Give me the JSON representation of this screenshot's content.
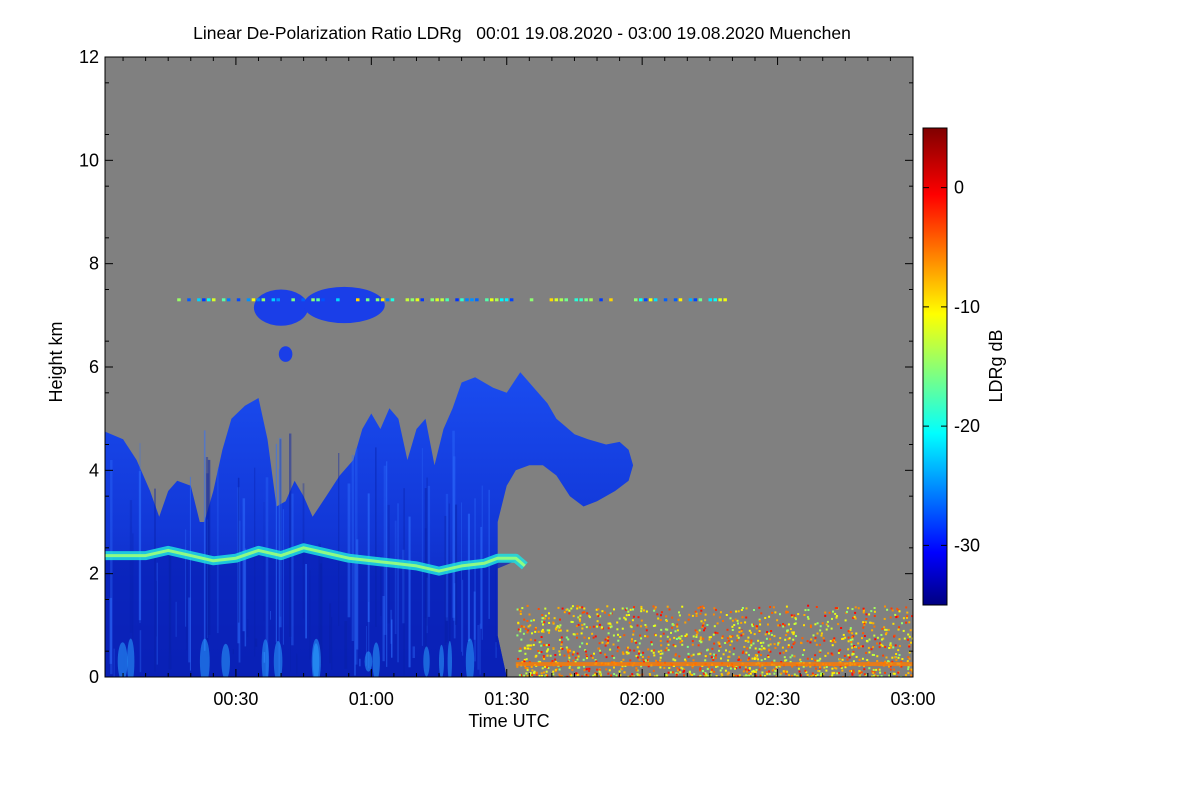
{
  "chart_data": {
    "type": "heatmap",
    "title": "Linear De-Polarization Ratio LDRg   00:01 19.08.2020 - 03:00 19.08.2020 Muenchen",
    "xlabel": "Time UTC",
    "ylabel": "Height km",
    "x_range_minutes": [
      1,
      180
    ],
    "y_range_km": [
      0,
      12
    ],
    "x_ticks": [
      {
        "label": "00:30",
        "minutes": 30
      },
      {
        "label": "01:00",
        "minutes": 60
      },
      {
        "label": "01:30",
        "minutes": 90
      },
      {
        "label": "02:00",
        "minutes": 120
      },
      {
        "label": "02:30",
        "minutes": 150
      },
      {
        "label": "03:00",
        "minutes": 180
      }
    ],
    "y_ticks": [
      {
        "label": "0",
        "km": 0
      },
      {
        "label": "2",
        "km": 2
      },
      {
        "label": "4",
        "km": 4
      },
      {
        "label": "6",
        "km": 6
      },
      {
        "label": "8",
        "km": 8
      },
      {
        "label": "10",
        "km": 10
      },
      {
        "label": "12",
        "km": 12
      }
    ],
    "colorbar": {
      "label": "LDRg dB",
      "range": [
        -35,
        5
      ],
      "ticks": [
        {
          "label": "0",
          "value": 0
        },
        {
          "label": "-10",
          "value": -10
        },
        {
          "label": "-20",
          "value": -20
        },
        {
          "label": "-30",
          "value": -30
        }
      ],
      "colormap": "jet"
    },
    "background_color": "#808080",
    "features": {
      "main_cloud_outline": [
        [
          1,
          0
        ],
        [
          1,
          4.75
        ],
        [
          5,
          4.6
        ],
        [
          8,
          4.2
        ],
        [
          11,
          3.6
        ],
        [
          13,
          3.1
        ],
        [
          15,
          3.6
        ],
        [
          17,
          3.8
        ],
        [
          20,
          3.7
        ],
        [
          22,
          3.0
        ],
        [
          23,
          3.0
        ],
        [
          25,
          3.6
        ],
        [
          27,
          4.4
        ],
        [
          29,
          5.0
        ],
        [
          32,
          5.25
        ],
        [
          35,
          5.4
        ],
        [
          37,
          4.6
        ],
        [
          39,
          3.3
        ],
        [
          41,
          3.4
        ],
        [
          43,
          3.8
        ],
        [
          45,
          3.5
        ],
        [
          47,
          3.1
        ],
        [
          50,
          3.5
        ],
        [
          53,
          3.9
        ],
        [
          56,
          4.2
        ],
        [
          58,
          4.8
        ],
        [
          60,
          5.1
        ],
        [
          62,
          4.8
        ],
        [
          64,
          5.2
        ],
        [
          66,
          5.0
        ],
        [
          68,
          4.2
        ],
        [
          70,
          4.8
        ],
        [
          72,
          5.0
        ],
        [
          74,
          4.1
        ],
        [
          76,
          4.8
        ],
        [
          78,
          5.2
        ],
        [
          80,
          5.7
        ],
        [
          83,
          5.8
        ],
        [
          87,
          5.6
        ],
        [
          90,
          5.5
        ],
        [
          93,
          5.9
        ],
        [
          96,
          5.6
        ],
        [
          99,
          5.3
        ],
        [
          101,
          5.0
        ],
        [
          103,
          4.85
        ],
        [
          105,
          4.7
        ],
        [
          108,
          4.6
        ],
        [
          112,
          4.5
        ],
        [
          115,
          4.55
        ],
        [
          117,
          4.4
        ],
        [
          118,
          4.1
        ],
        [
          117,
          3.8
        ],
        [
          114,
          3.6
        ],
        [
          110,
          3.4
        ],
        [
          107,
          3.3
        ],
        [
          104,
          3.5
        ],
        [
          101,
          3.9
        ],
        [
          98,
          4.1
        ],
        [
          95,
          4.1
        ],
        [
          92,
          4.0
        ],
        [
          90,
          3.7
        ],
        [
          88,
          3.0
        ],
        [
          88,
          2.3
        ],
        [
          88,
          0.8
        ],
        [
          90,
          0
        ]
      ],
      "melting_layer": [
        [
          1,
          2.35
        ],
        [
          10,
          2.35
        ],
        [
          15,
          2.45
        ],
        [
          20,
          2.35
        ],
        [
          25,
          2.25
        ],
        [
          30,
          2.3
        ],
        [
          35,
          2.45
        ],
        [
          40,
          2.35
        ],
        [
          45,
          2.5
        ],
        [
          50,
          2.4
        ],
        [
          55,
          2.3
        ],
        [
          60,
          2.25
        ],
        [
          65,
          2.2
        ],
        [
          70,
          2.15
        ],
        [
          75,
          2.05
        ],
        [
          80,
          2.15
        ],
        [
          85,
          2.2
        ],
        [
          88,
          2.3
        ],
        [
          92,
          2.3
        ],
        [
          94,
          2.15
        ]
      ],
      "cirrus_patches": [
        {
          "center_min": 40,
          "center_km": 7.15,
          "rx_min": 6,
          "ry_km": 0.35
        },
        {
          "center_min": 54,
          "center_km": 7.2,
          "rx_min": 9,
          "ry_km": 0.35
        },
        {
          "center_min": 41,
          "center_km": 6.25,
          "rx_min": 1.5,
          "ry_km": 0.15
        }
      ],
      "cirrus_streak_km": 7.3,
      "cirrus_streak_span_min": [
        17,
        140
      ],
      "boundary_layer_aerosol": {
        "span_min": [
          92,
          180
        ],
        "top_km": 1.4,
        "ldr_db_range": [
          -15,
          0
        ]
      }
    }
  }
}
